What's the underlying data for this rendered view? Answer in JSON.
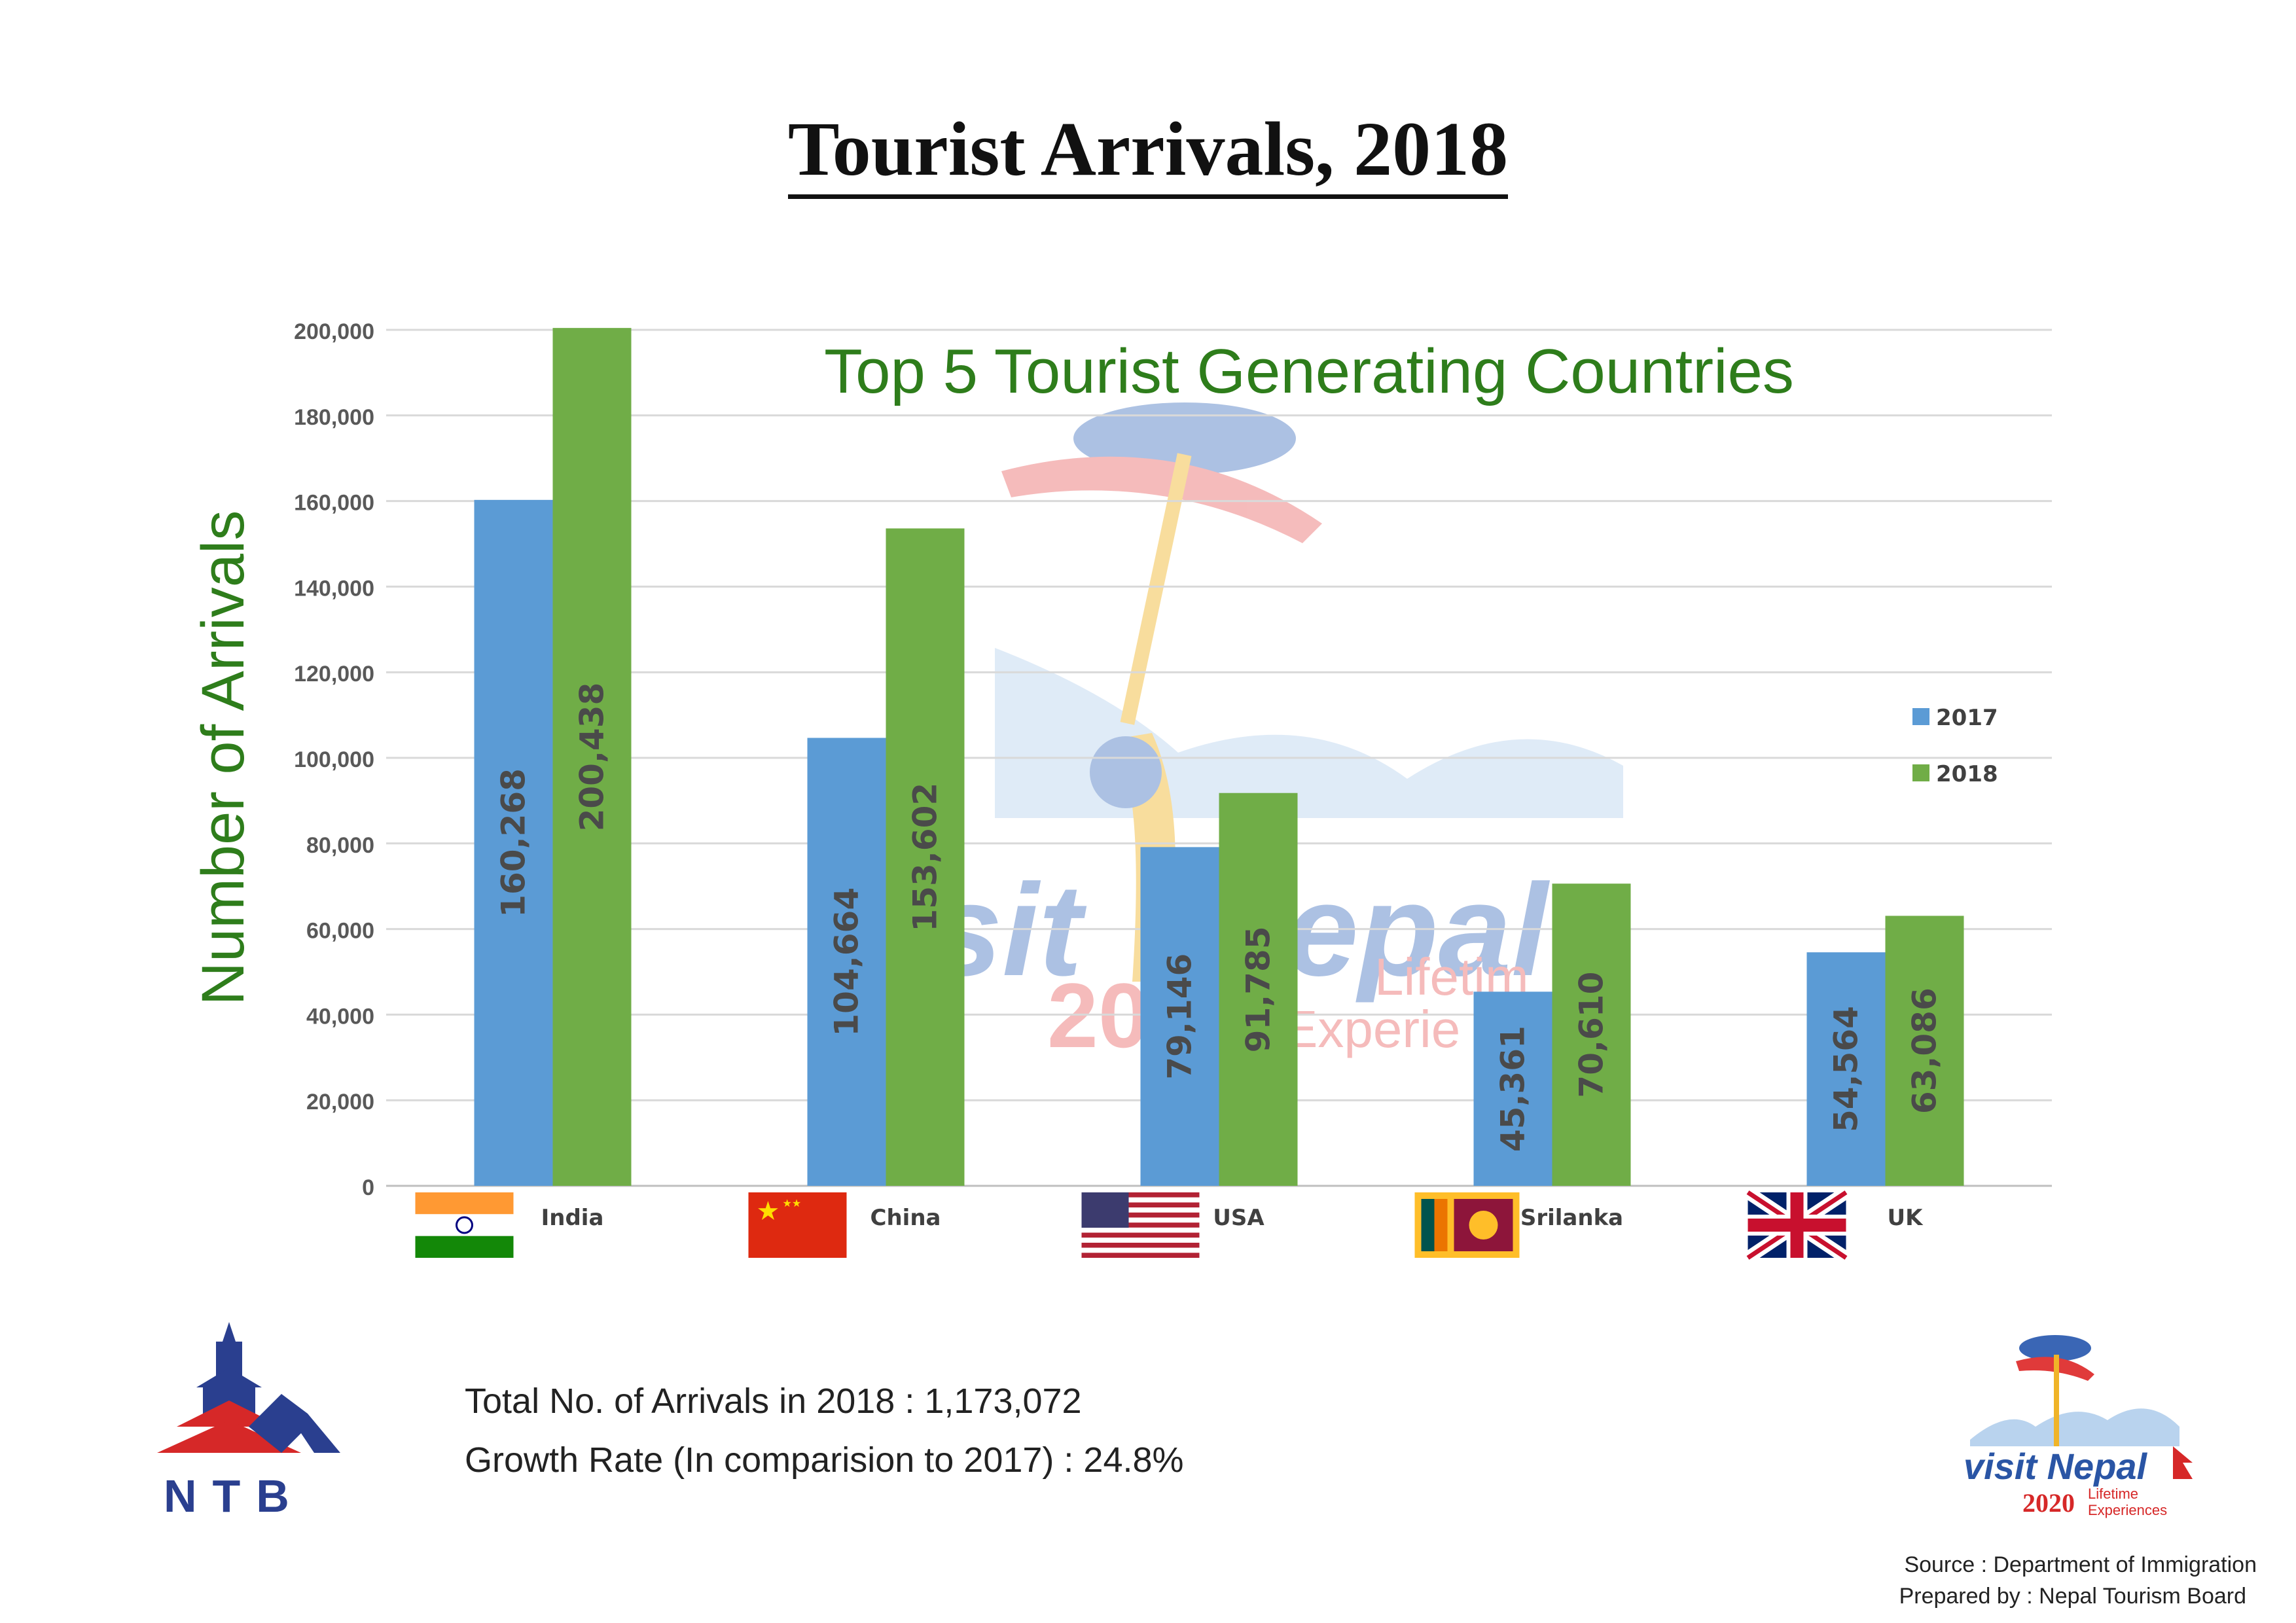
{
  "page": {
    "title": "Tourist Arrivals, 2018"
  },
  "chart_data": {
    "type": "bar",
    "title": "Top 5 Tourist Generating Countries",
    "xlabel": "",
    "ylabel": "Number of Arrivals",
    "categories": [
      "India",
      "China",
      "USA",
      "Srilanka",
      "UK"
    ],
    "series": [
      {
        "name": "2017",
        "color": "#5b9bd5",
        "values": [
          160268,
          104664,
          79146,
          45361,
          54564
        ],
        "labels": [
          "160,268",
          "104,664",
          "79,146",
          "45,361",
          "54,564"
        ]
      },
      {
        "name": "2018",
        "color": "#70ad47",
        "values": [
          200438,
          153602,
          91785,
          70610,
          63086
        ],
        "labels": [
          "200,438",
          "153,602",
          "91,785",
          "70,610",
          "63,086"
        ]
      }
    ],
    "ylim": [
      0,
      200000
    ],
    "yticks": [
      "0",
      "20,000",
      "40,000",
      "60,000",
      "80,000",
      "100,000",
      "120,000",
      "140,000",
      "160,000",
      "180,000",
      "200,000"
    ],
    "grid": true,
    "legend_position": "right",
    "flag_icons": [
      "india-flag-icon",
      "china-flag-icon",
      "usa-flag-icon",
      "srilanka-flag-icon",
      "uk-flag-icon"
    ]
  },
  "summary": {
    "total": "Total No. of Arrivals in 2018 : 1,173,072",
    "growth": "Growth Rate (In comparision to 2017) : 24.8%"
  },
  "footer": {
    "source": "Source : Department of Immigration",
    "prepared": "Prepared by : Nepal Tourism Board"
  },
  "logos": {
    "ntb": {
      "icon": "ntb-logo",
      "text": "NTB"
    },
    "visit_nepal": {
      "icon": "visit-nepal-logo",
      "line1": "visit Nepal",
      "line2": "2020",
      "line3": "Lifetime",
      "line4": "Experiences"
    }
  },
  "colors": {
    "title_green": "#2e7d1b",
    "bar_2017": "#5b9bd5",
    "bar_2018": "#70ad47",
    "label": "#4a4a4a"
  }
}
